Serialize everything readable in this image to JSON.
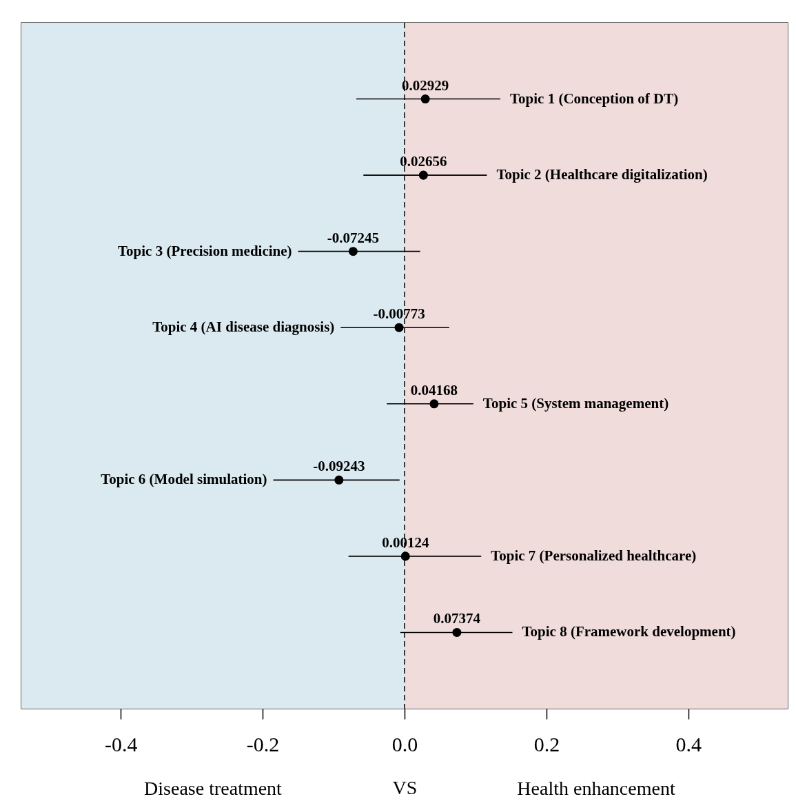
{
  "chart_data": {
    "type": "scatter",
    "xlabel": "VS",
    "categories": [
      "Topic 1 (Conception of DT)",
      "Topic 2 (Healthcare digitalization)",
      "Topic 3 (Precision medicine)",
      "Topic 4 (AI disease diagnosis)",
      "Topic 5 (System management)",
      "Topic 6 (Model simulation)",
      "Topic 7 (Personalized healthcare)",
      "Topic 8 (Framework development)"
    ],
    "series": [
      {
        "color": "#000000",
        "values": [
          0.02929,
          0.02656,
          -0.07245,
          -0.00773,
          0.04168,
          -0.09243,
          0.00124,
          0.07374
        ],
        "errors": [
          [
            -0.068,
            0.135
          ],
          [
            -0.058,
            0.116
          ],
          [
            -0.15,
            0.022
          ],
          [
            -0.09,
            0.063
          ],
          [
            -0.025,
            0.097
          ],
          [
            -0.185,
            -0.007
          ],
          [
            -0.079,
            0.108
          ],
          [
            -0.006,
            0.152
          ]
        ]
      }
    ],
    "data_labels": true,
    "marker": "circle",
    "grid": false,
    "orientation": "horizontal",
    "tick_labels": "x",
    "xlim": [
      -0.54,
      0.54
    ],
    "xticks": [
      -0.4,
      -0.2,
      {
        "value": 0,
        "label": "0.0"
      },
      0.2,
      0.4
    ],
    "ref_lines": [
      {
        "axis": "x",
        "value": 0,
        "color": "#000000",
        "line_style": "dashed"
      }
    ],
    "annotations": [
      "Disease treatment",
      "Health enhancement"
    ],
    "bands": [
      {
        "axis": "x",
        "from": -0.54,
        "to": 0,
        "color": "#dbeaf1"
      },
      {
        "axis": "x",
        "from": 0,
        "to": 0.54,
        "color": "#efdcdb"
      }
    ]
  }
}
